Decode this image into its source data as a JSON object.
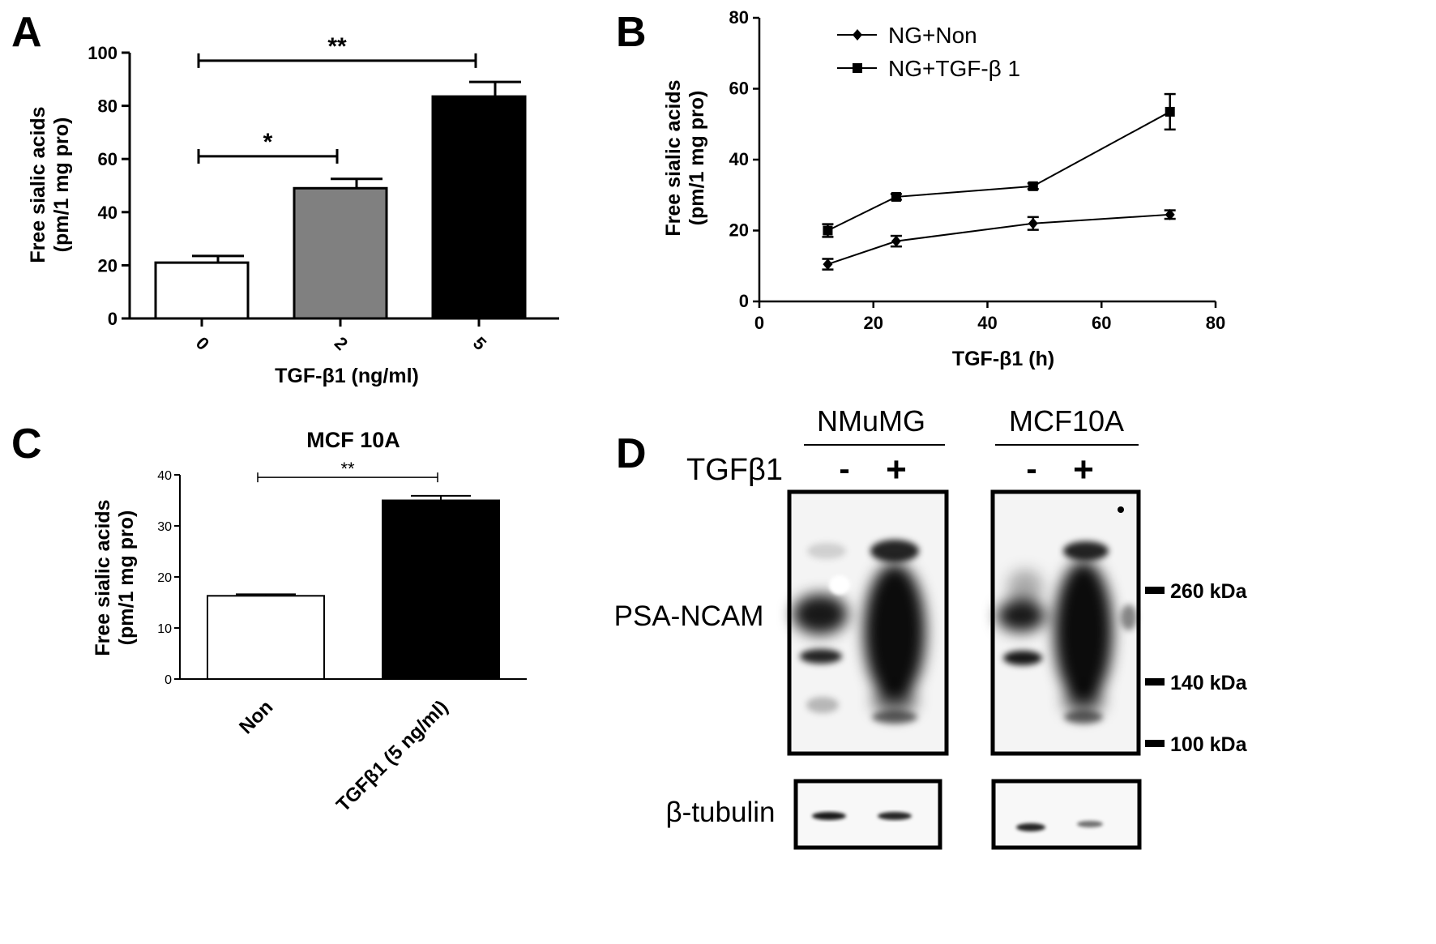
{
  "chart_data": [
    {
      "panel": "A",
      "type": "bar",
      "categories": [
        "0",
        "2",
        "5"
      ],
      "values": [
        21,
        49,
        83.5
      ],
      "errors": [
        2.5,
        3.5,
        5.5
      ],
      "bar_colors": [
        "#ffffff",
        "#808080",
        "#000000"
      ],
      "xlabel": "TGF-β1 (ng/ml)",
      "ylabel_line1": "Free sialic acids",
      "ylabel_line2": "(pm/1 mg pro)",
      "ylim": [
        0,
        100
      ],
      "yticks": [
        "0",
        "20",
        "40",
        "60",
        "80",
        "100"
      ],
      "significance": [
        {
          "from": 0,
          "to": 1,
          "y": 61,
          "label": "*"
        },
        {
          "from": 0,
          "to": 2,
          "y": 97,
          "label": "**"
        }
      ]
    },
    {
      "panel": "B",
      "type": "line",
      "x": [
        12,
        24,
        48,
        72
      ],
      "series": [
        {
          "name": "NG+Non",
          "marker": "diamond",
          "values": [
            10.5,
            17,
            22,
            24.5
          ],
          "errors": [
            1.5,
            1.5,
            1.8,
            1.2
          ]
        },
        {
          "name": "NG+TGF-β 1",
          "marker": "square",
          "values": [
            20,
            29.5,
            32.5,
            53.5
          ],
          "errors": [
            1.8,
            0.8,
            0.8,
            5
          ]
        }
      ],
      "xlabel": "TGF-β1 (h)",
      "ylabel_line1": "Free sialic acids",
      "ylabel_line2": "(pm/1 mg pro)",
      "xlim": [
        0,
        80
      ],
      "ylim": [
        0,
        80
      ],
      "xticks": [
        "0",
        "20",
        "40",
        "60",
        "80"
      ],
      "yticks": [
        "0",
        "20",
        "40",
        "60",
        "80"
      ],
      "legend_position": "top-left"
    },
    {
      "panel": "C",
      "type": "bar",
      "title": "MCF 10A",
      "categories": [
        "Non",
        "TGFβ1 (5 ng/ml)"
      ],
      "values": [
        16.3,
        35
      ],
      "errors": [
        0.3,
        0.9
      ],
      "bar_colors": [
        "#ffffff",
        "#000000"
      ],
      "ylabel_line1": "Free sialic acids",
      "ylabel_line2": "(pm/1 mg pro)",
      "ylim": [
        0,
        40
      ],
      "yticks": [
        "0",
        "10",
        "20",
        "30",
        "40"
      ],
      "significance": [
        {
          "from": 0,
          "to": 1,
          "y": 39.5,
          "label": "**"
        }
      ]
    }
  ],
  "panel_labels": {
    "a": "A",
    "b": "B",
    "c": "C",
    "d": "D"
  },
  "blot": {
    "group1": "NMuMG",
    "group2": "MCF10A",
    "treatment": "TGFβ1",
    "minus": "-",
    "plus": "+",
    "row1": "PSA-NCAM",
    "row2": "β-tubulin",
    "markers": [
      "260 kDa",
      "140 kDa",
      "100 kDa"
    ]
  }
}
